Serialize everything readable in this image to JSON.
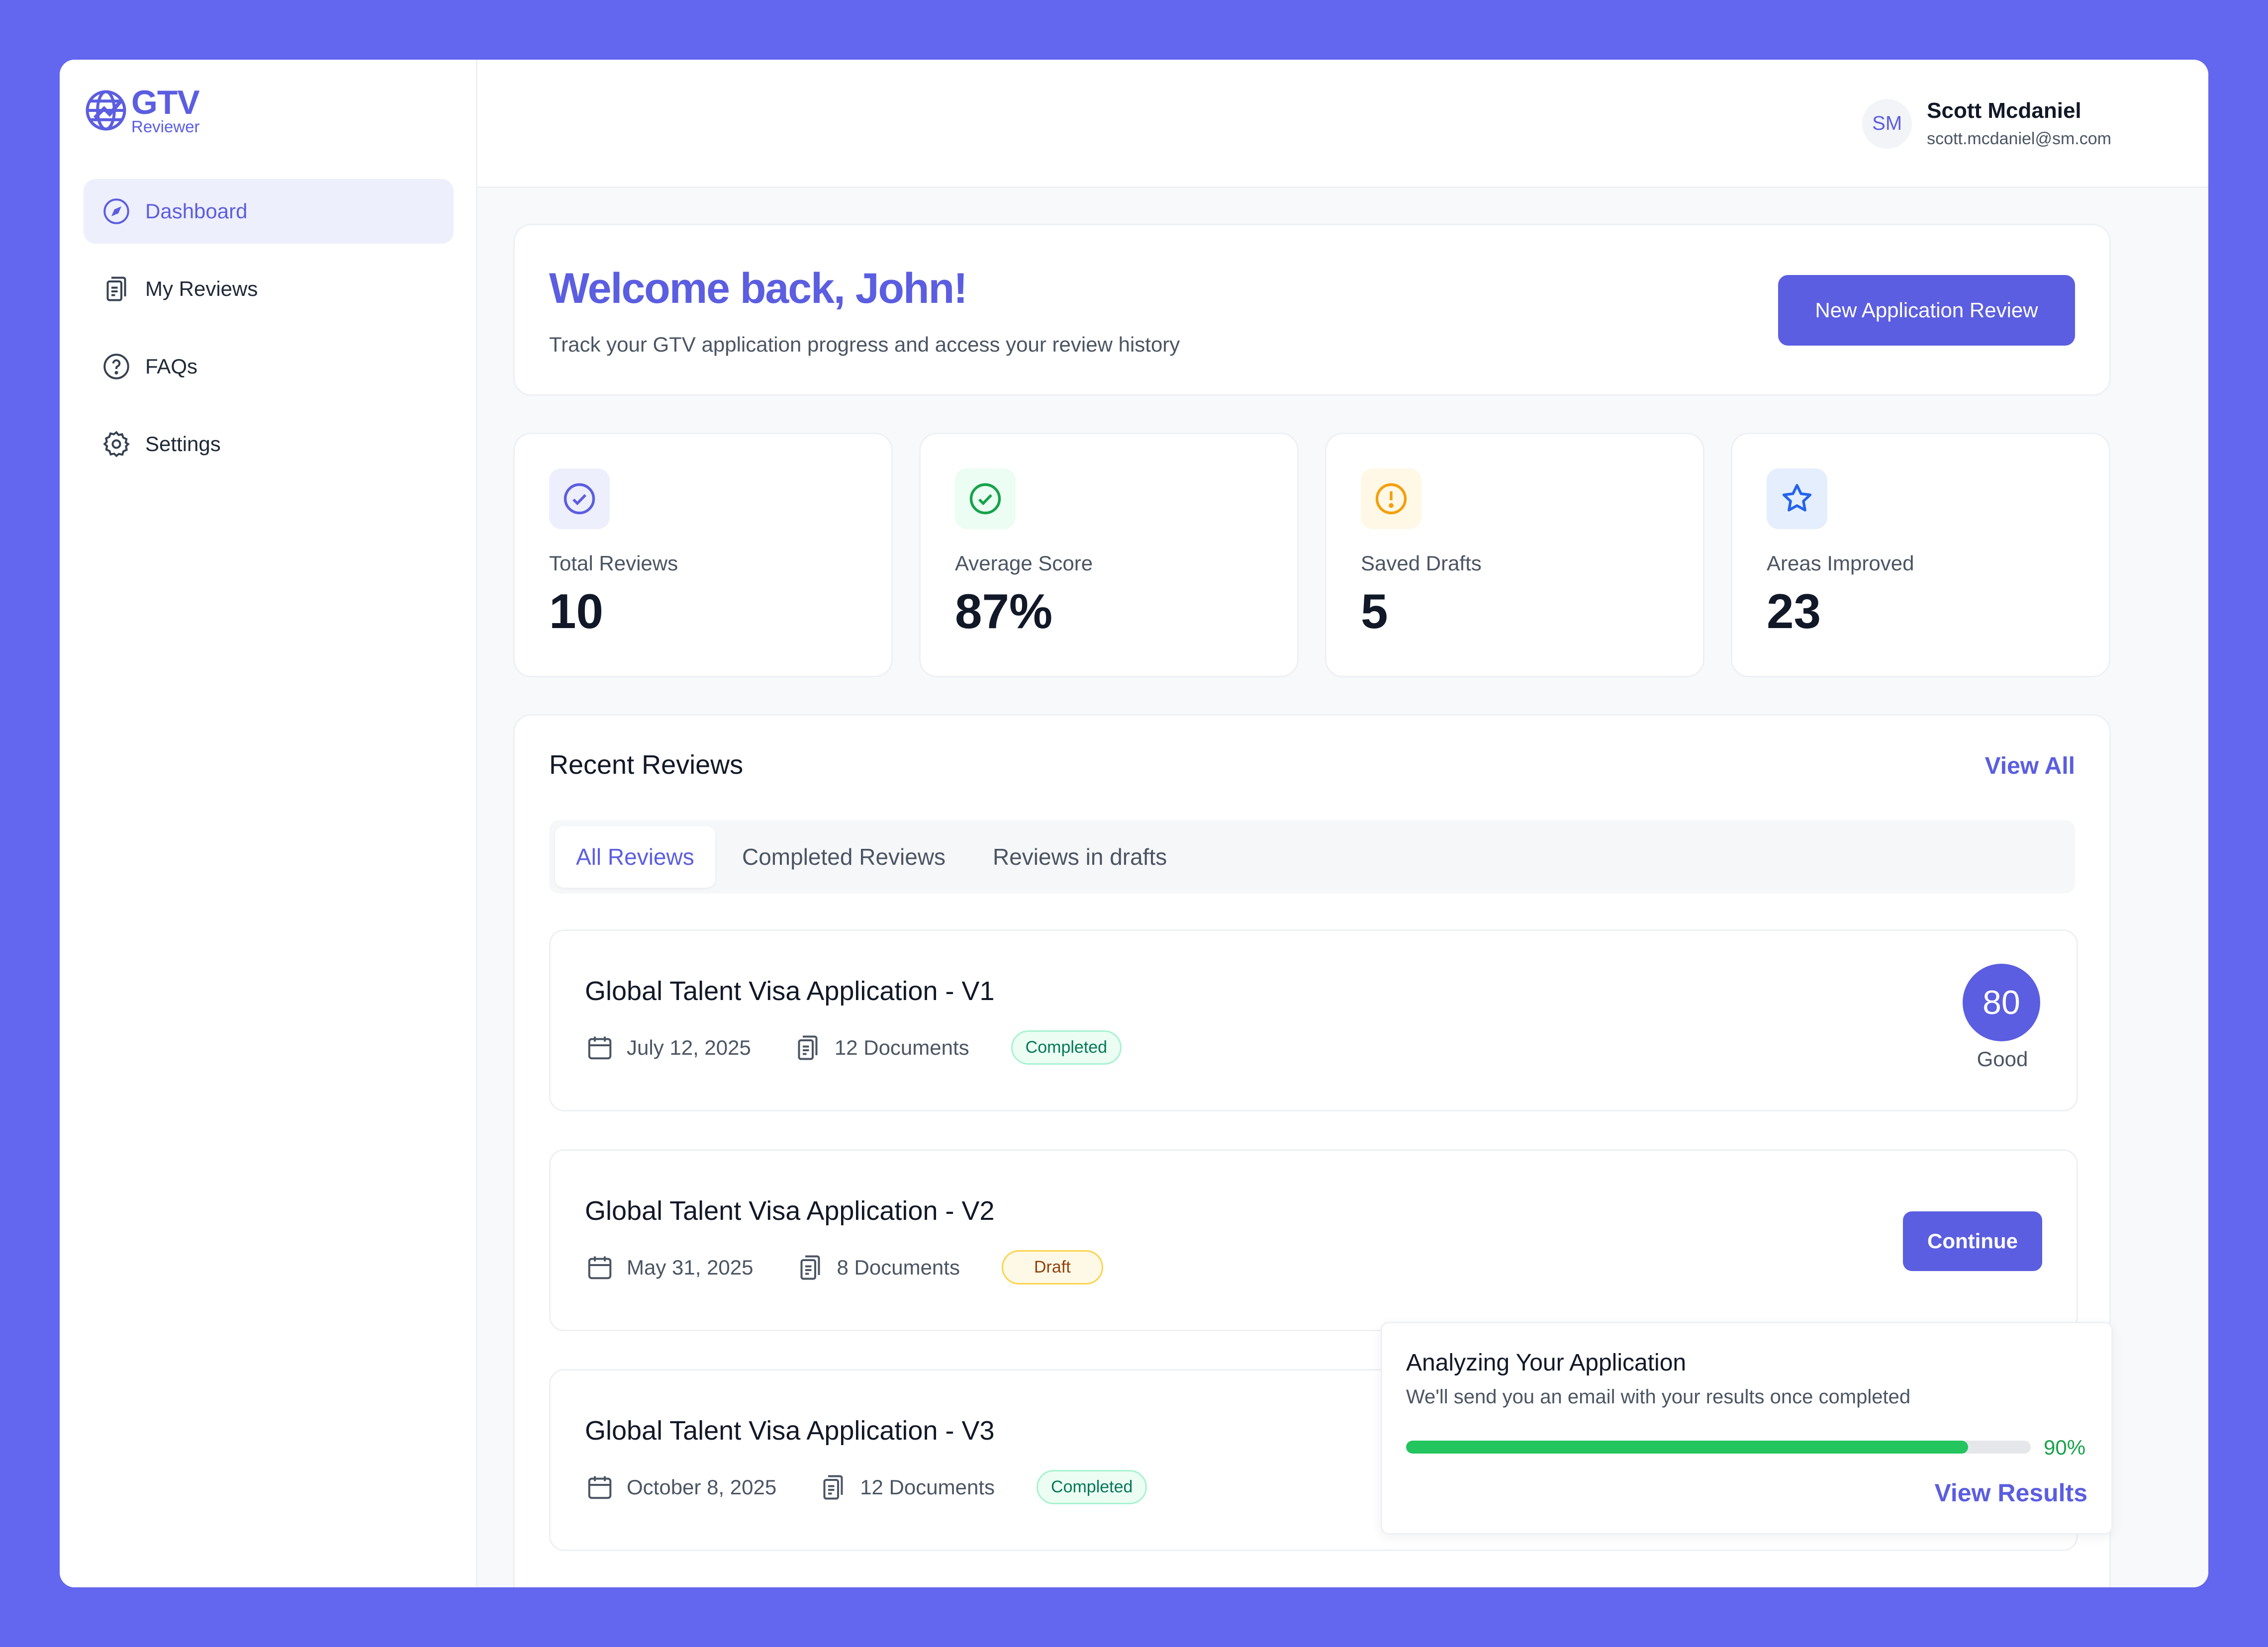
{
  "logo": {
    "title": "GTV",
    "subtitle": "Reviewer"
  },
  "sidebar": {
    "items": [
      {
        "label": "Dashboard",
        "icon": "compass-icon",
        "active": true
      },
      {
        "label": "My Reviews",
        "icon": "documents-icon",
        "active": false
      },
      {
        "label": "FAQs",
        "icon": "help-circle-icon",
        "active": false
      },
      {
        "label": "Settings",
        "icon": "gear-icon",
        "active": false
      }
    ]
  },
  "user": {
    "initials": "SM",
    "name": "Scott Mcdaniel",
    "email": "scott.mcdaniel@sm.com"
  },
  "welcome": {
    "title": "Welcome back, John!",
    "subtitle": "Track your GTV application progress and access your review history",
    "button": "New Application Review"
  },
  "stats": [
    {
      "label": "Total Reviews",
      "value": "10",
      "icon": "check-circle-icon",
      "color": "#5B5EE0"
    },
    {
      "label": "Average Score",
      "value": "87%",
      "icon": "check-circle-icon",
      "color": "#16A34A"
    },
    {
      "label": "Saved Drafts",
      "value": "5",
      "icon": "alert-circle-icon",
      "color": "#F59E0B"
    },
    {
      "label": "Areas Improved",
      "value": "23",
      "icon": "star-icon",
      "color": "#2563EB"
    }
  ],
  "recent": {
    "title": "Recent Reviews",
    "view_all": "View All",
    "tabs": [
      "All Reviews",
      "Completed Reviews",
      "Reviews in drafts"
    ],
    "active_tab": 0,
    "items": [
      {
        "title": "Global Talent Visa Application - V1",
        "date": "July 12, 2025",
        "documents": "12 Documents",
        "status": "Completed",
        "score": "80",
        "score_label": "Good"
      },
      {
        "title": "Global Talent Visa Application - V2",
        "date": "May 31, 2025",
        "documents": "8 Documents",
        "status": "Draft",
        "action": "Continue"
      },
      {
        "title": "Global Talent Visa Application - V3",
        "date": "October 8, 2025",
        "documents": "12 Documents",
        "status": "Completed"
      }
    ]
  },
  "analysis": {
    "title": "Analyzing Your Application",
    "subtitle": "We'll send you an email with your results once completed",
    "progress": 0.9,
    "progress_label": "90%",
    "link": "View Results"
  },
  "colors": {
    "accent": "#5B5EE0",
    "background": "#6366EE",
    "success": "#22C55E"
  }
}
